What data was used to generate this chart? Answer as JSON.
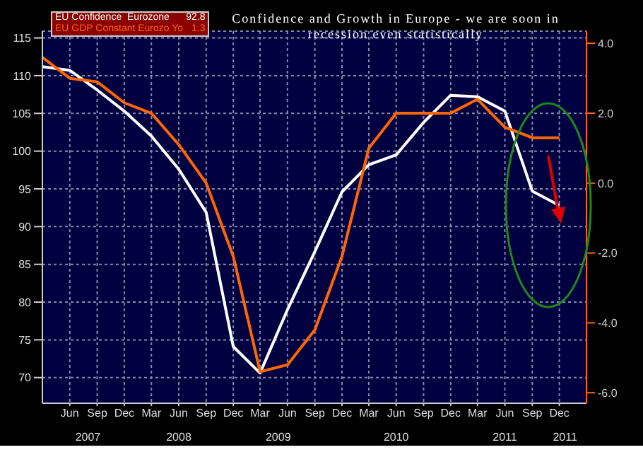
{
  "chart_data": {
    "type": "line",
    "title": "Confidence and Growth in Europe - we are soon in recession even statistically",
    "x": [
      "2007-03",
      "2007-06",
      "2007-09",
      "2007-12",
      "2008-03",
      "2008-06",
      "2008-09",
      "2008-12",
      "2009-03",
      "2009-06",
      "2009-09",
      "2009-12",
      "2010-03",
      "2010-06",
      "2010-09",
      "2010-12",
      "2011-03",
      "2011-06",
      "2011-09",
      "2011-12"
    ],
    "series": [
      {
        "name": "EU Confidence  Eurozone",
        "color": "#ffffff",
        "axis": "y",
        "values": [
          111.2,
          110.7,
          108.1,
          105.3,
          102.0,
          97.6,
          91.9,
          74.1,
          70.6,
          79.0,
          86.7,
          94.6,
          98.2,
          99.5,
          103.8,
          107.4,
          107.2,
          105.3,
          94.7,
          92.8
        ]
      },
      {
        "name": "EU GDP Constant Eurozo Yo",
        "color": "#ff6600",
        "axis": "y2",
        "values": [
          3.6,
          3.0,
          2.9,
          2.3,
          2.0,
          1.1,
          0.0,
          -2.1,
          -5.4,
          -5.2,
          -4.2,
          -2.1,
          1.0,
          2.0,
          2.0,
          2.0,
          2.4,
          1.6,
          1.3,
          1.3
        ]
      }
    ],
    "annotations": [
      "92.8",
      "1.3"
    ],
    "xlim": [
      "2007-03",
      "2012-03"
    ],
    "xticks": [
      {
        "value": "2007-06",
        "label": "Jun"
      },
      {
        "value": "2007-09",
        "label": "Sep"
      },
      {
        "value": "2007-12",
        "label": "Dec"
      },
      {
        "value": "2008-03",
        "label": "Mar"
      },
      {
        "value": "2008-06",
        "label": "Jun"
      },
      {
        "value": "2008-09",
        "label": "Sep"
      },
      {
        "value": "2008-12",
        "label": "Dec"
      },
      {
        "value": "2009-03",
        "label": "Mar"
      },
      {
        "value": "2009-06",
        "label": "Jun"
      },
      {
        "value": "2009-09",
        "label": "Sep"
      },
      {
        "value": "2009-12",
        "label": "Dec"
      },
      {
        "value": "2010-03",
        "label": "Mar"
      },
      {
        "value": "2010-06",
        "label": "Jun"
      },
      {
        "value": "2010-09",
        "label": "Sep"
      },
      {
        "value": "2010-12",
        "label": "Dec"
      },
      {
        "value": "2011-03",
        "label": "Mar"
      },
      {
        "value": "2011-06",
        "label": "Jun"
      },
      {
        "value": "2011-09",
        "label": "Sep"
      },
      {
        "value": "2011-12",
        "label": "Dec"
      }
    ],
    "x2lim": [
      "2007-03",
      "2012-03"
    ],
    "x2ticks": [
      {
        "value": "2007-08",
        "label": "2007"
      },
      {
        "value": "2008-06",
        "label": "2008"
      },
      {
        "value": "2009-05",
        "label": "2009"
      },
      {
        "value": "2010-06",
        "label": "2010"
      },
      {
        "value": "2011-06",
        "label": "2011"
      },
      {
        "value": "2011-12-20",
        "label": "2011"
      }
    ],
    "ylim": [
      66.6,
      115.9
    ],
    "yticks": [
      70,
      75,
      80,
      85,
      90,
      95,
      100,
      105,
      110,
      115
    ],
    "y2lim": [
      -6.3,
      4.35
    ],
    "y2ticks": [
      {
        "value": -6,
        "label": "-6.0"
      },
      {
        "value": -4,
        "label": "-4.0"
      },
      {
        "value": -2,
        "label": "-2.0"
      },
      {
        "value": 0,
        "label": "0.0"
      },
      {
        "value": 2,
        "label": "2.0"
      },
      {
        "value": 4,
        "label": "4.0"
      }
    ],
    "grid": true,
    "legend": "top left"
  }
}
